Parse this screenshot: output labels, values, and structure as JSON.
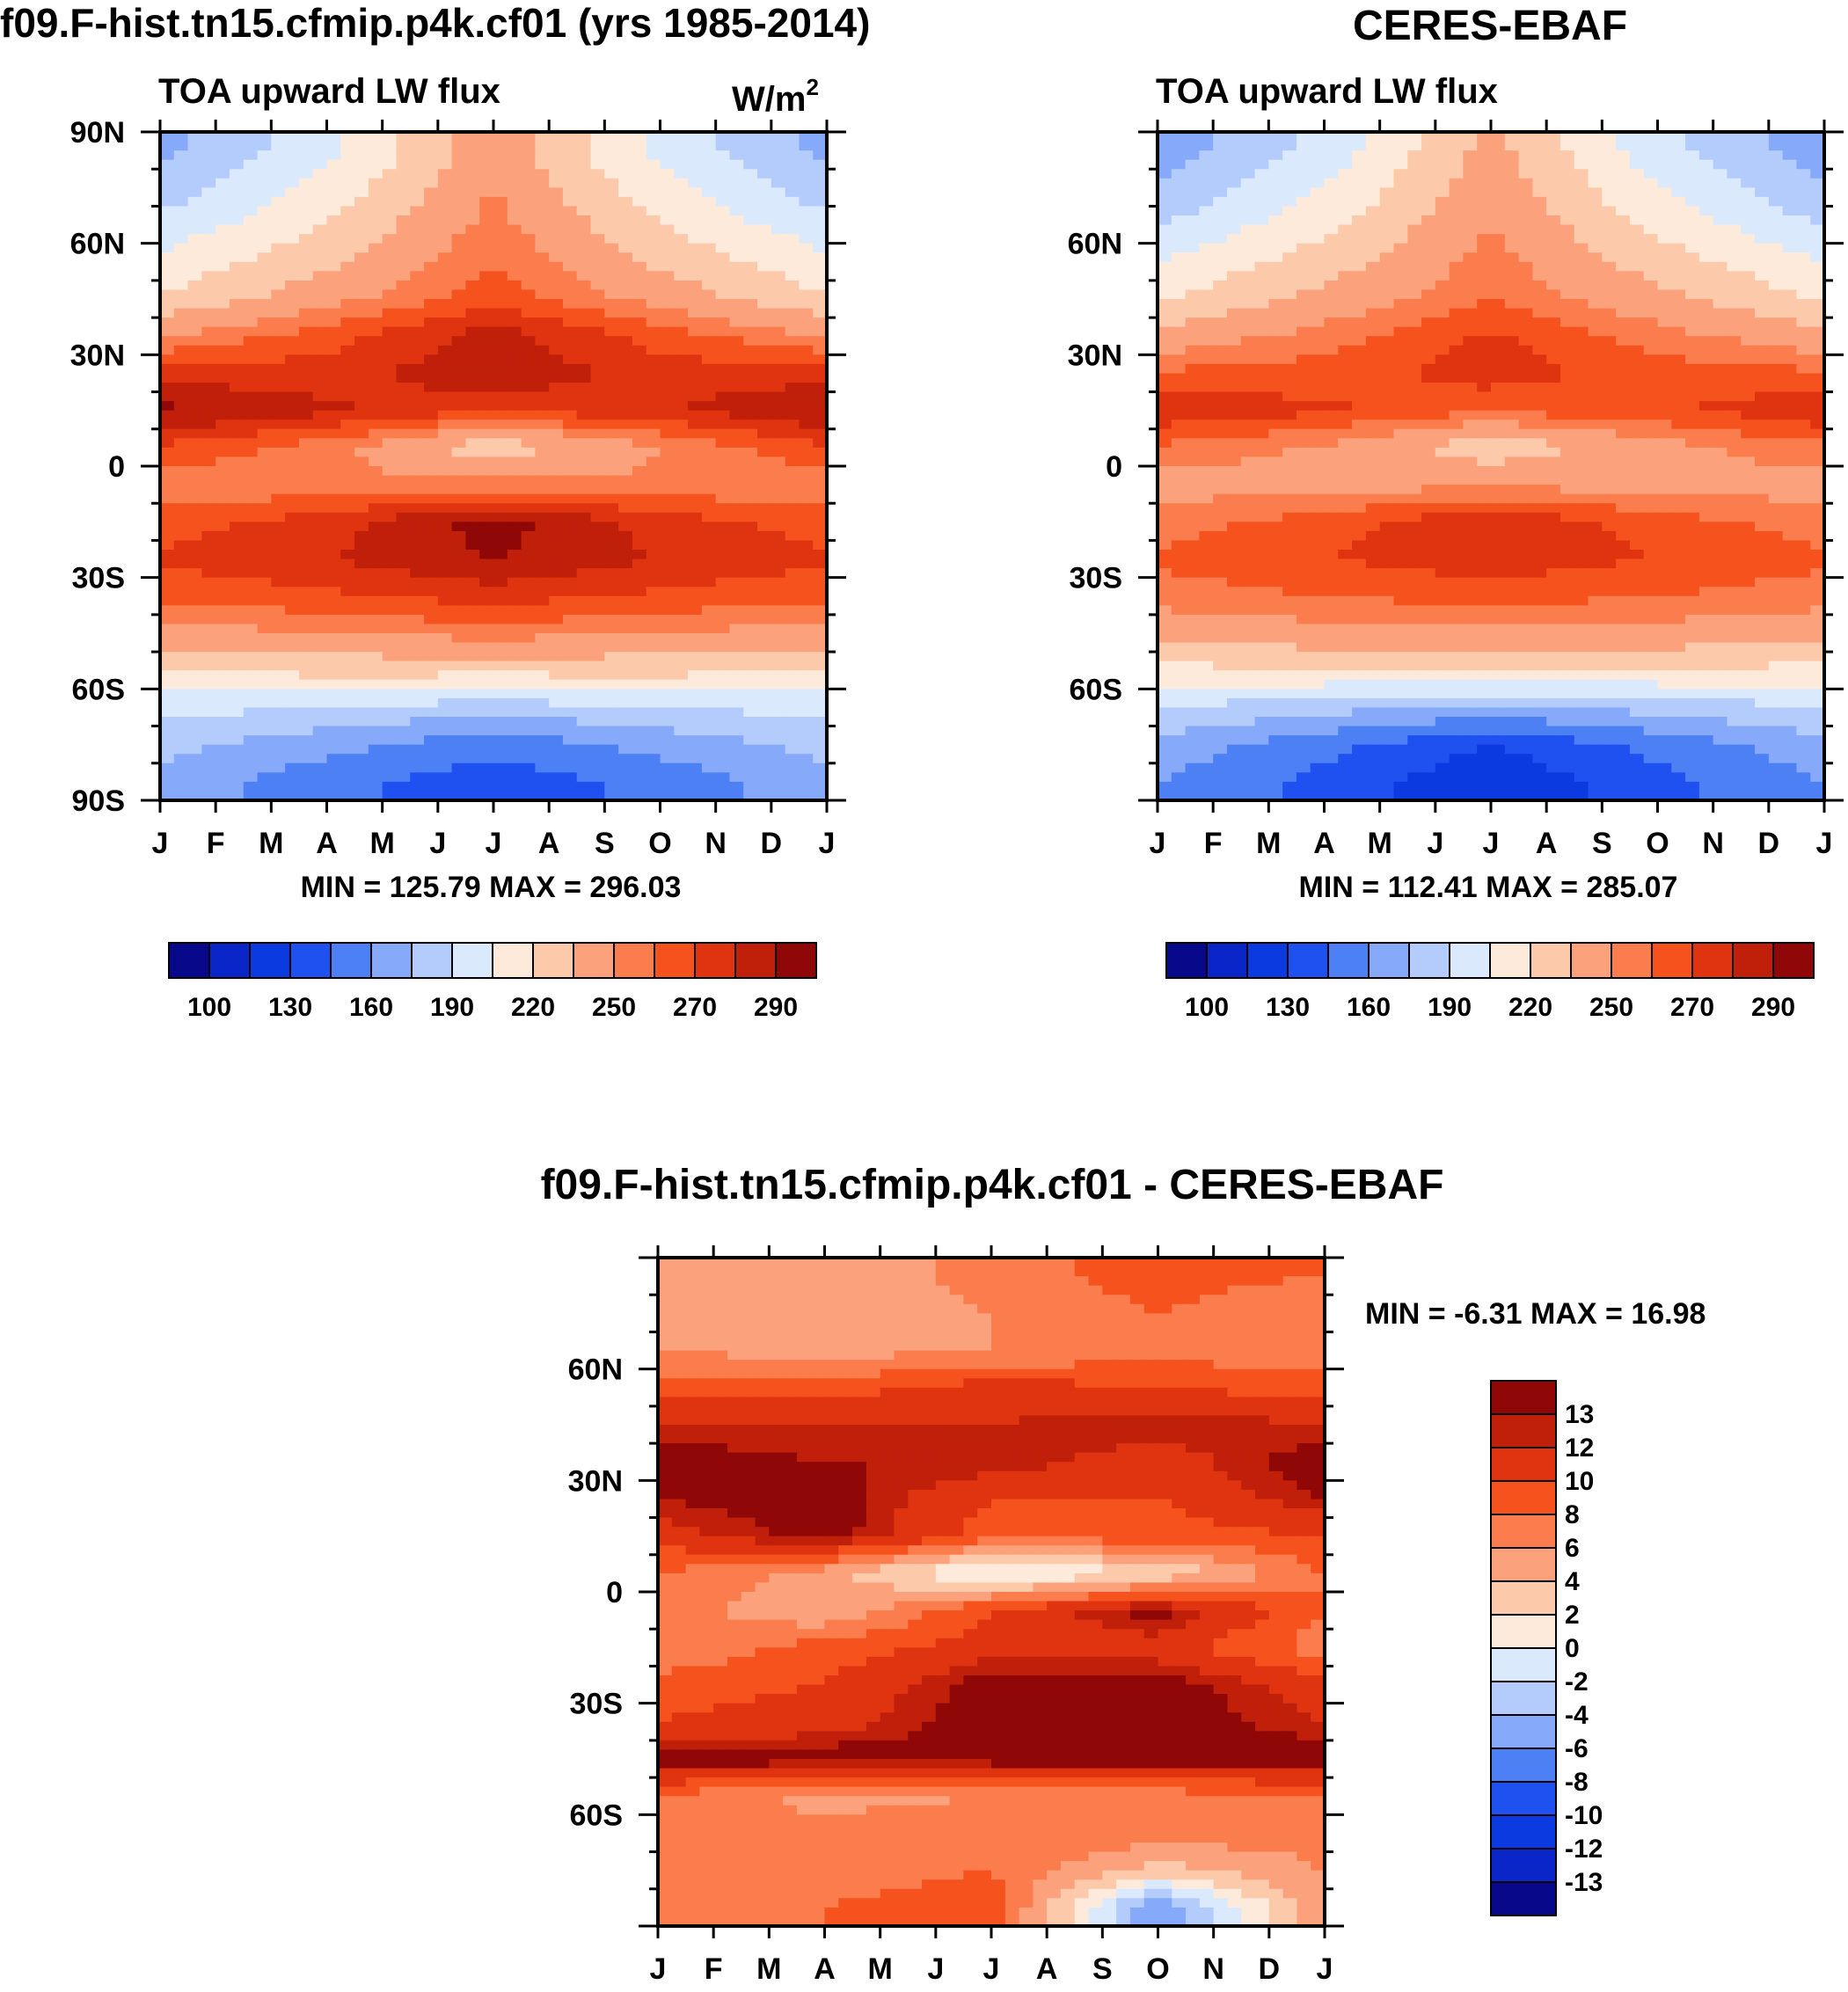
{
  "panels": [
    {
      "title": "f09.F-hist.tn15.cfmip.p4k.cf01 (yrs 1985-2014)",
      "subtitle": "TOA upward LW flux",
      "units": "W/m",
      "units_sup": "2",
      "minmax": "MIN = 125.79 MAX = 296.03"
    },
    {
      "title": "CERES-EBAF",
      "subtitle": "TOA upward LW flux",
      "minmax": "MIN = 112.41 MAX = 285.07"
    },
    {
      "title": "f09.F-hist.tn15.cfmip.p4k.cf01 - CERES-EBAF",
      "minmax": "MIN =  -6.31 MAX =  16.98"
    }
  ],
  "colors": {
    "abs_palette": [
      "#08088a",
      "#0a25c8",
      "#0b3ae0",
      "#1f50f0",
      "#4d80f5",
      "#86aaf9",
      "#b4ccfb",
      "#dbe9fc",
      "#fdeadb",
      "#fcc9aa",
      "#fba27d",
      "#fb7c4c",
      "#f5521e",
      "#e03410",
      "#c01f0a",
      "#8f0707"
    ],
    "diff_palette": [
      "#08088a",
      "#0a25c8",
      "#0b3ae0",
      "#1f50f0",
      "#4d80f5",
      "#86aaf9",
      "#b4ccfb",
      "#dbe9fc",
      "#fdeadb",
      "#fcc9aa",
      "#fba27d",
      "#fb7c4c",
      "#f5521e",
      "#e03410",
      "#c01f0a",
      "#8f0707"
    ]
  },
  "chart_data": [
    {
      "type": "heatmap",
      "title": "f09.F-hist.tn15.cfmip.p4k.cf01 (yrs 1985-2014)",
      "subtitle": "TOA upward LW flux",
      "units": "W/m2",
      "xlabels": [
        "J",
        "F",
        "M",
        "A",
        "M",
        "J",
        "J",
        "A",
        "S",
        "O",
        "N",
        "D",
        "J"
      ],
      "ylabels": [
        "90N",
        "60N",
        "30N",
        "0",
        "30S",
        "60S",
        "90S"
      ],
      "ytick_values": [
        90,
        60,
        30,
        0,
        -30,
        -60,
        -90
      ],
      "levels": [
        90,
        100,
        115,
        130,
        145,
        160,
        175,
        190,
        205,
        220,
        235,
        250,
        260,
        270,
        280,
        290
      ],
      "colorbar_labels": [
        "100",
        "130",
        "160",
        "190",
        "220",
        "250",
        "270",
        "290"
      ],
      "min": 125.79,
      "max": 296.03,
      "latitudes": [
        85,
        75,
        65,
        55,
        45,
        35,
        25,
        15,
        5,
        -5,
        -15,
        -25,
        -35,
        -45,
        -55,
        -65,
        -75,
        -85
      ],
      "month_steps": [
        0,
        3,
        6,
        9,
        12
      ],
      "values": [
        [
          170,
          200,
          245,
          200,
          170
        ],
        [
          180,
          210,
          250,
          210,
          180
        ],
        [
          195,
          220,
          255,
          220,
          195
        ],
        [
          208,
          232,
          260,
          232,
          208
        ],
        [
          222,
          245,
          265,
          245,
          222
        ],
        [
          250,
          265,
          285,
          265,
          250
        ],
        [
          275,
          275,
          288,
          275,
          275
        ],
        [
          293,
          282,
          272,
          278,
          292
        ],
        [
          268,
          255,
          225,
          250,
          268
        ],
        [
          255,
          252,
          255,
          252,
          255
        ],
        [
          265,
          275,
          295,
          275,
          265
        ],
        [
          272,
          280,
          290,
          280,
          272
        ],
        [
          262,
          268,
          275,
          268,
          262
        ],
        [
          245,
          250,
          255,
          250,
          245
        ],
        [
          220,
          225,
          225,
          225,
          220
        ],
        [
          195,
          190,
          182,
          190,
          195
        ],
        [
          180,
          165,
          150,
          165,
          180
        ],
        [
          170,
          150,
          135,
          150,
          170
        ]
      ]
    },
    {
      "type": "heatmap",
      "title": "CERES-EBAF",
      "subtitle": "TOA upward LW flux",
      "units": "W/m2",
      "xlabels": [
        "J",
        "F",
        "M",
        "A",
        "M",
        "J",
        "J",
        "A",
        "S",
        "O",
        "N",
        "D",
        "J"
      ],
      "ylabels": [
        "60N",
        "30N",
        "0",
        "30S",
        "60S"
      ],
      "ytick_values": [
        60,
        30,
        0,
        -30,
        -60
      ],
      "levels": [
        90,
        100,
        115,
        130,
        145,
        160,
        175,
        190,
        205,
        220,
        235,
        250,
        260,
        270,
        280,
        290
      ],
      "colorbar_labels": [
        "100",
        "130",
        "160",
        "190",
        "220",
        "250",
        "270",
        "290"
      ],
      "min": 112.41,
      "max": 285.07,
      "latitudes": [
        85,
        75,
        65,
        55,
        45,
        35,
        25,
        15,
        5,
        -5,
        -15,
        -25,
        -35,
        -45,
        -55,
        -65,
        -75,
        -85
      ],
      "month_steps": [
        0,
        3,
        6,
        9,
        12
      ],
      "values": [
        [
          165,
          195,
          240,
          195,
          165
        ],
        [
          175,
          205,
          245,
          205,
          175
        ],
        [
          190,
          215,
          250,
          215,
          190
        ],
        [
          205,
          228,
          255,
          228,
          205
        ],
        [
          218,
          240,
          260,
          240,
          218
        ],
        [
          240,
          255,
          272,
          255,
          240
        ],
        [
          262,
          265,
          275,
          265,
          262
        ],
        [
          278,
          272,
          262,
          268,
          278
        ],
        [
          258,
          248,
          225,
          245,
          258
        ],
        [
          245,
          245,
          248,
          245,
          245
        ],
        [
          255,
          265,
          280,
          265,
          255
        ],
        [
          262,
          270,
          276,
          270,
          262
        ],
        [
          255,
          260,
          265,
          260,
          255
        ],
        [
          240,
          245,
          248,
          245,
          240
        ],
        [
          215,
          220,
          222,
          220,
          215
        ],
        [
          190,
          180,
          172,
          180,
          190
        ],
        [
          170,
          150,
          130,
          150,
          170
        ],
        [
          160,
          140,
          118,
          140,
          160
        ]
      ]
    },
    {
      "type": "heatmap",
      "title": "f09.F-hist.tn15.cfmip.p4k.cf01 - CERES-EBAF",
      "xlabels": [
        "J",
        "F",
        "M",
        "A",
        "M",
        "J",
        "J",
        "A",
        "S",
        "O",
        "N",
        "D",
        "J"
      ],
      "ylabels": [
        "60N",
        "30N",
        "0",
        "30S",
        "60S"
      ],
      "ytick_values": [
        60,
        30,
        0,
        -30,
        -60
      ],
      "levels": [
        -14,
        -13,
        -12,
        -10,
        -8,
        -6,
        -4,
        -2,
        0,
        2,
        4,
        6,
        8,
        10,
        12,
        13
      ],
      "colorbar_labels": [
        "-13",
        "-12",
        "-10",
        "-8",
        "-6",
        "-4",
        "-2",
        "0",
        "2",
        "4",
        "6",
        "8",
        "10",
        "12",
        "13"
      ],
      "min": -6.31,
      "max": 16.98,
      "latitudes": [
        85,
        75,
        65,
        55,
        45,
        35,
        25,
        15,
        5,
        -5,
        -15,
        -25,
        -35,
        -45,
        -55,
        -65,
        -75,
        -85
      ],
      "month_steps": [
        0,
        3,
        6,
        9,
        12
      ],
      "values": [
        [
          5,
          4,
          7,
          9,
          8
        ],
        [
          5,
          4,
          6,
          8,
          6
        ],
        [
          6,
          5,
          6,
          7,
          7
        ],
        [
          9,
          9,
          11,
          10,
          9
        ],
        [
          12,
          12,
          12,
          13,
          12
        ],
        [
          14,
          13,
          13,
          11,
          14
        ],
        [
          13,
          14,
          10,
          10,
          13
        ],
        [
          11,
          14,
          9,
          9,
          10
        ],
        [
          8,
          5,
          -1,
          2,
          8
        ],
        [
          7,
          4,
          10,
          14,
          8
        ],
        [
          6,
          9,
          11,
          11,
          7
        ],
        [
          9,
          10,
          14,
          14,
          11
        ],
        [
          10,
          11,
          14,
          14,
          12
        ],
        [
          14,
          14,
          14,
          14,
          14
        ],
        [
          8,
          5,
          6,
          7,
          8
        ],
        [
          7,
          7,
          8,
          7,
          7
        ],
        [
          6,
          7,
          8,
          3,
          6
        ],
        [
          7,
          8,
          9,
          -6,
          6
        ]
      ]
    }
  ]
}
